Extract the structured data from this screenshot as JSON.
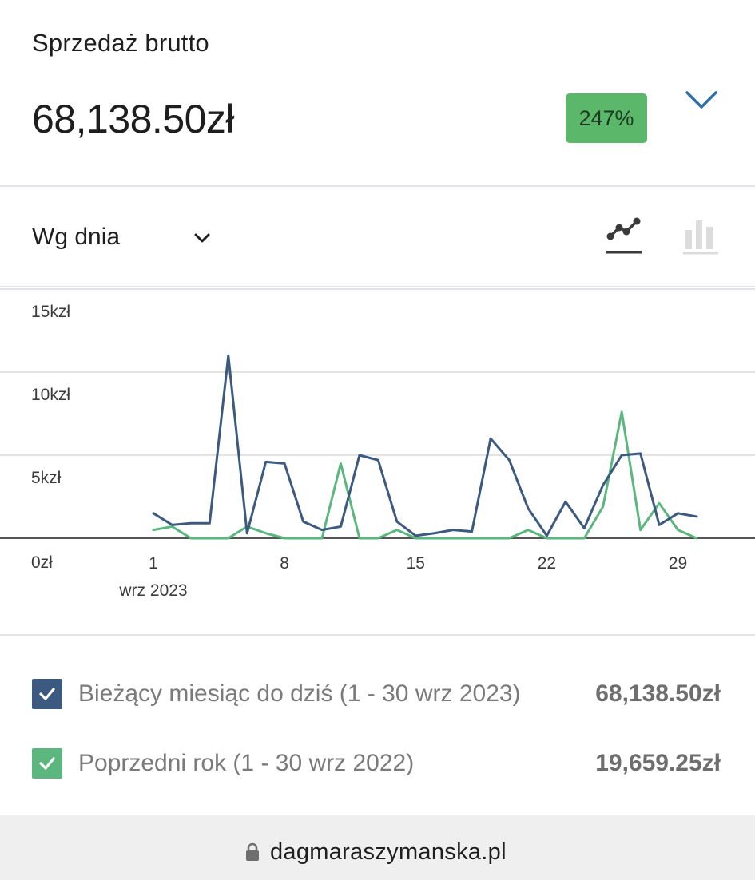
{
  "header": {
    "title": "Sprzedaż brutto",
    "value": "68,138.50zł",
    "delta": "247%",
    "expand_icon": "chevron-down-icon"
  },
  "controls": {
    "interval": "Wg dnia",
    "interval_icon": "chevron-down-icon",
    "chart_types": [
      {
        "name": "line-chart-icon",
        "selected": true
      },
      {
        "name": "bar-chart-icon",
        "selected": false
      }
    ]
  },
  "chart_data": {
    "type": "line",
    "x": [
      1,
      2,
      3,
      4,
      5,
      6,
      7,
      8,
      9,
      10,
      11,
      12,
      13,
      14,
      15,
      16,
      17,
      18,
      19,
      20,
      21,
      22,
      23,
      24,
      25,
      26,
      27,
      28,
      29,
      30
    ],
    "x_ticks": [
      "1",
      "8",
      "15",
      "22",
      "29"
    ],
    "x_sublabel": "wrz 2023",
    "y_ticks": [
      "0zł",
      "5kzł",
      "10kzł",
      "15kzł"
    ],
    "ylim": [
      0,
      15000
    ],
    "grid": true,
    "series": [
      {
        "color": "#3c5a80",
        "values": [
          1500,
          800,
          900,
          900,
          11000,
          300,
          4600,
          4500,
          1000,
          500,
          700,
          5000,
          4700,
          1000,
          150,
          300,
          500,
          400,
          6000,
          4700,
          1800,
          150,
          2200,
          600,
          3200,
          5000,
          5100,
          800,
          1500,
          1300
        ]
      },
      {
        "color": "#5bb77d",
        "values": [
          500,
          700,
          0,
          0,
          0,
          700,
          300,
          0,
          0,
          0,
          4500,
          0,
          0,
          500,
          0,
          0,
          0,
          0,
          0,
          0,
          500,
          0,
          0,
          0,
          1900,
          7600,
          500,
          2100,
          500,
          0
        ]
      }
    ]
  },
  "legend": [
    {
      "label": "Bieżący miesiąc do dziś (1 - 30 wrz 2023)",
      "total": "68,138.50zł",
      "color": "#3c5a80"
    },
    {
      "label": "Poprzedni rok (1 - 30 wrz 2022)",
      "total": "19,659.25zł",
      "color": "#5bb77d"
    }
  ],
  "browser": {
    "url": "dagmaraszymanska.pl",
    "lock_icon": "lock-icon"
  }
}
